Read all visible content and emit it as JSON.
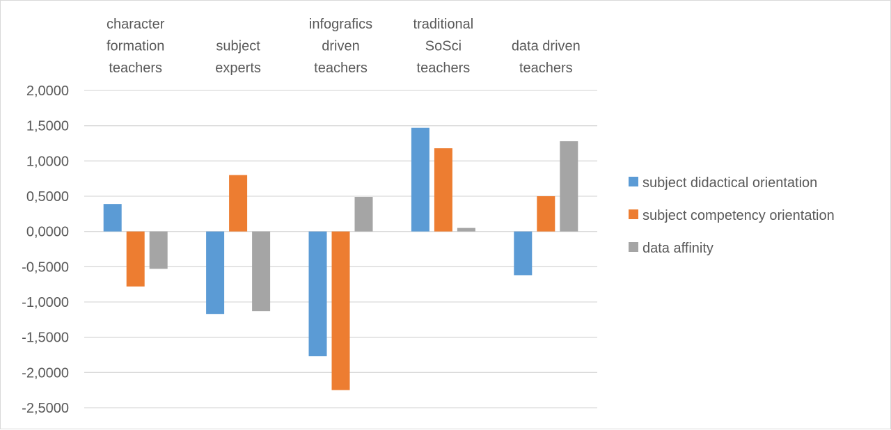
{
  "chart_data": {
    "type": "bar",
    "title": "",
    "xlabel": "",
    "ylabel": "",
    "category_axis_position": "top",
    "categories": [
      [
        "character",
        "formation",
        "teachers"
      ],
      [
        "subject",
        "experts"
      ],
      [
        "infografics",
        "driven",
        "teachers"
      ],
      [
        "traditional",
        "SoSci",
        "teachers"
      ],
      [
        "data driven",
        "teachers"
      ]
    ],
    "ylim": [
      -2.5,
      2.0
    ],
    "yticks": [
      2.0,
      1.5,
      1.0,
      0.5,
      0.0,
      -0.5,
      -1.0,
      -1.5,
      -2.0,
      -2.5
    ],
    "ytick_labels": [
      "2,0000",
      "1,5000",
      "1,0000",
      "0,5000",
      "0,0000",
      "-0,5000",
      "-1,0000",
      "-1,5000",
      "-2,0000",
      "-2,5000"
    ],
    "grid": true,
    "legend_position": "right",
    "series": [
      {
        "name": "subject didactical orientation",
        "color": "#5b9bd5",
        "values": [
          0.39,
          -1.17,
          -1.77,
          1.47,
          -0.62
        ]
      },
      {
        "name": "subject competency orientation",
        "color": "#ed7d31",
        "values": [
          -0.78,
          0.8,
          -2.25,
          1.18,
          0.5
        ]
      },
      {
        "name": "data affinity",
        "color": "#a5a5a5",
        "values": [
          -0.53,
          -1.13,
          0.49,
          0.05,
          1.28
        ]
      }
    ]
  }
}
